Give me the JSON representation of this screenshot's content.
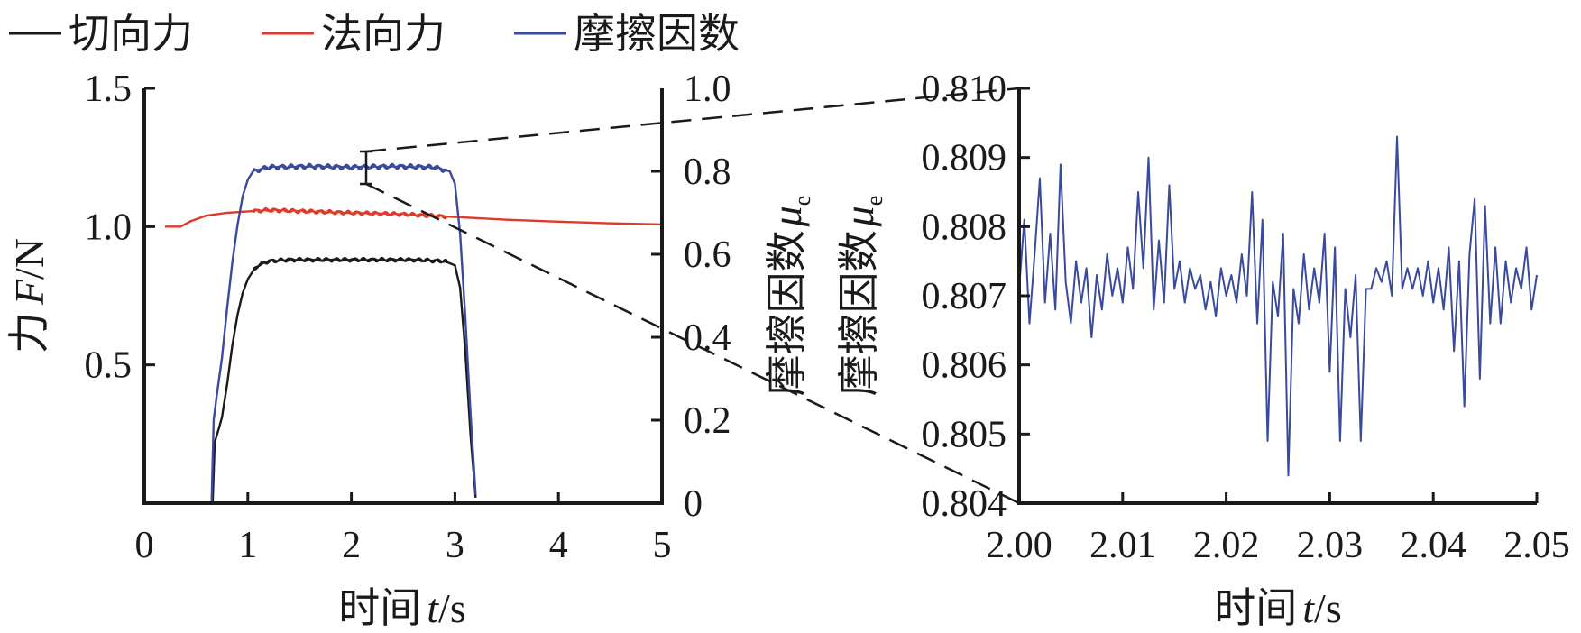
{
  "legend": {
    "items": [
      {
        "label": "切向力",
        "color": "#1a1a1a"
      },
      {
        "label": "法向力",
        "color": "#e03a2a"
      },
      {
        "label": "摩擦因数",
        "color": "#3a4a9c"
      }
    ]
  },
  "chart_data": [
    {
      "type": "line",
      "xlabel": {
        "main": "时间",
        "var": "t",
        "unit": "/s"
      },
      "ylabel_left": {
        "main": "力",
        "var": "F",
        "unit": "/N"
      },
      "ylabel_right": {
        "main": "摩擦因数",
        "var": "μ",
        "sub": "e"
      },
      "xlim": [
        0,
        5
      ],
      "ylim_left": [
        0,
        1.5
      ],
      "ylim_right": [
        0,
        1.0
      ],
      "x_ticks": [
        "0",
        "1",
        "2",
        "3",
        "4",
        "5"
      ],
      "y_left_ticks": [
        "0.5",
        "1.0",
        "1.5"
      ],
      "y_right_ticks": [
        "0",
        "0.2",
        "0.4",
        "0.6",
        "0.8",
        "1.0"
      ],
      "series": [
        {
          "name": "切向力",
          "axis": "left",
          "color": "#1a1a1a",
          "points": [
            [
              0.66,
              0.0
            ],
            [
              0.68,
              0.22
            ],
            [
              0.72,
              0.27
            ],
            [
              0.75,
              0.31
            ],
            [
              0.8,
              0.43
            ],
            [
              0.85,
              0.57
            ],
            [
              0.9,
              0.68
            ],
            [
              0.95,
              0.76
            ],
            [
              1.0,
              0.81
            ],
            [
              1.05,
              0.84
            ],
            [
              1.1,
              0.86
            ],
            [
              1.2,
              0.875
            ],
            [
              1.4,
              0.88
            ],
            [
              1.8,
              0.88
            ],
            [
              2.2,
              0.88
            ],
            [
              2.6,
              0.88
            ],
            [
              2.9,
              0.875
            ],
            [
              3.0,
              0.86
            ],
            [
              3.05,
              0.78
            ],
            [
              3.1,
              0.55
            ],
            [
              3.15,
              0.25
            ],
            [
              3.2,
              0.02
            ]
          ]
        },
        {
          "name": "法向力",
          "axis": "left",
          "color": "#e03a2a",
          "points": [
            [
              0.2,
              1.0
            ],
            [
              0.35,
              1.0
            ],
            [
              0.45,
              1.02
            ],
            [
              0.6,
              1.04
            ],
            [
              0.8,
              1.05
            ],
            [
              1.0,
              1.055
            ],
            [
              1.2,
              1.06
            ],
            [
              1.6,
              1.055
            ],
            [
              2.0,
              1.05
            ],
            [
              2.5,
              1.045
            ],
            [
              3.0,
              1.035
            ],
            [
              3.5,
              1.025
            ],
            [
              4.0,
              1.018
            ],
            [
              4.5,
              1.012
            ],
            [
              5.0,
              1.008
            ]
          ]
        },
        {
          "name": "摩擦因数",
          "axis": "right",
          "color": "#3a4a9c",
          "points": [
            [
              0.65,
              0.0
            ],
            [
              0.67,
              0.2
            ],
            [
              0.7,
              0.26
            ],
            [
              0.75,
              0.35
            ],
            [
              0.8,
              0.47
            ],
            [
              0.85,
              0.58
            ],
            [
              0.9,
              0.67
            ],
            [
              0.95,
              0.74
            ],
            [
              1.0,
              0.78
            ],
            [
              1.05,
              0.8
            ],
            [
              1.2,
              0.81
            ],
            [
              1.6,
              0.812
            ],
            [
              2.0,
              0.81
            ],
            [
              2.4,
              0.812
            ],
            [
              2.8,
              0.81
            ],
            [
              2.95,
              0.8
            ],
            [
              3.0,
              0.77
            ],
            [
              3.05,
              0.65
            ],
            [
              3.1,
              0.45
            ],
            [
              3.15,
              0.22
            ],
            [
              3.2,
              0.02
            ]
          ]
        }
      ]
    },
    {
      "type": "line",
      "xlabel": {
        "main": "时间",
        "var": "t",
        "unit": "/s"
      },
      "ylabel": {
        "main": "摩擦因数",
        "var": "μ",
        "sub": "e"
      },
      "xlim": [
        2.0,
        2.05
      ],
      "ylim": [
        0.804,
        0.81
      ],
      "x_ticks": [
        "2.00",
        "2.01",
        "2.02",
        "2.03",
        "2.04",
        "2.05"
      ],
      "y_ticks": [
        "0.804",
        "0.805",
        "0.806",
        "0.807",
        "0.808",
        "0.809",
        "0.810"
      ],
      "series": [
        {
          "name": "摩擦因数",
          "color": "#3a4a9c",
          "points": [
            [
              2.0,
              0.8071
            ],
            [
              2.0005,
              0.8081
            ],
            [
              2.001,
              0.8066
            ],
            [
              2.0015,
              0.8076
            ],
            [
              2.002,
              0.8087
            ],
            [
              2.0025,
              0.8069
            ],
            [
              2.003,
              0.8079
            ],
            [
              2.0035,
              0.8068
            ],
            [
              2.004,
              0.8089
            ],
            [
              2.0045,
              0.8072
            ],
            [
              2.005,
              0.8066
            ],
            [
              2.0055,
              0.8075
            ],
            [
              2.006,
              0.8069
            ],
            [
              2.0065,
              0.8074
            ],
            [
              2.007,
              0.8064
            ],
            [
              2.0075,
              0.8073
            ],
            [
              2.008,
              0.8068
            ],
            [
              2.0085,
              0.8076
            ],
            [
              2.009,
              0.807
            ],
            [
              2.0095,
              0.8074
            ],
            [
              2.01,
              0.8069
            ],
            [
              2.0105,
              0.8077
            ],
            [
              2.011,
              0.8071
            ],
            [
              2.0115,
              0.8085
            ],
            [
              2.012,
              0.8074
            ],
            [
              2.0125,
              0.809
            ],
            [
              2.013,
              0.8068
            ],
            [
              2.0135,
              0.8078
            ],
            [
              2.014,
              0.8069
            ],
            [
              2.0145,
              0.8086
            ],
            [
              2.015,
              0.8071
            ],
            [
              2.0155,
              0.8075
            ],
            [
              2.016,
              0.8069
            ],
            [
              2.0165,
              0.8074
            ],
            [
              2.017,
              0.8071
            ],
            [
              2.0175,
              0.8073
            ],
            [
              2.018,
              0.8068
            ],
            [
              2.0185,
              0.8072
            ],
            [
              2.019,
              0.8067
            ],
            [
              2.0195,
              0.8074
            ],
            [
              2.02,
              0.807
            ],
            [
              2.0205,
              0.8073
            ],
            [
              2.021,
              0.8069
            ],
            [
              2.0215,
              0.8076
            ],
            [
              2.022,
              0.807
            ],
            [
              2.0225,
              0.8085
            ],
            [
              2.023,
              0.8066
            ],
            [
              2.0235,
              0.8081
            ],
            [
              2.024,
              0.8049
            ],
            [
              2.0245,
              0.8072
            ],
            [
              2.025,
              0.8067
            ],
            [
              2.0255,
              0.8079
            ],
            [
              2.026,
              0.8044
            ],
            [
              2.0265,
              0.8071
            ],
            [
              2.027,
              0.8066
            ],
            [
              2.0275,
              0.8076
            ],
            [
              2.028,
              0.8068
            ],
            [
              2.0285,
              0.8074
            ],
            [
              2.029,
              0.8069
            ],
            [
              2.0295,
              0.8079
            ],
            [
              2.03,
              0.8059
            ],
            [
              2.0305,
              0.8077
            ],
            [
              2.031,
              0.8049
            ],
            [
              2.0315,
              0.8071
            ],
            [
              2.032,
              0.8064
            ],
            [
              2.0325,
              0.8073
            ],
            [
              2.033,
              0.8049
            ],
            [
              2.0335,
              0.8071
            ],
            [
              2.034,
              0.8071
            ],
            [
              2.0345,
              0.8074
            ],
            [
              2.035,
              0.8072
            ],
            [
              2.0355,
              0.8075
            ],
            [
              2.036,
              0.807
            ],
            [
              2.0365,
              0.8093
            ],
            [
              2.037,
              0.8071
            ],
            [
              2.0375,
              0.8074
            ],
            [
              2.038,
              0.8071
            ],
            [
              2.0385,
              0.8074
            ],
            [
              2.039,
              0.807
            ],
            [
              2.0395,
              0.8075
            ],
            [
              2.04,
              0.8069
            ],
            [
              2.0405,
              0.8074
            ],
            [
              2.041,
              0.8068
            ],
            [
              2.0415,
              0.8077
            ],
            [
              2.042,
              0.8062
            ],
            [
              2.0425,
              0.8075
            ],
            [
              2.043,
              0.8054
            ],
            [
              2.0435,
              0.8076
            ],
            [
              2.044,
              0.8084
            ],
            [
              2.0445,
              0.8058
            ],
            [
              2.045,
              0.8083
            ],
            [
              2.0455,
              0.8066
            ],
            [
              2.046,
              0.8077
            ],
            [
              2.0465,
              0.8066
            ],
            [
              2.047,
              0.8075
            ],
            [
              2.0475,
              0.8069
            ],
            [
              2.048,
              0.8074
            ],
            [
              2.0485,
              0.8071
            ],
            [
              2.049,
              0.8077
            ],
            [
              2.0495,
              0.8068
            ],
            [
              2.05,
              0.8073
            ]
          ]
        }
      ]
    }
  ]
}
